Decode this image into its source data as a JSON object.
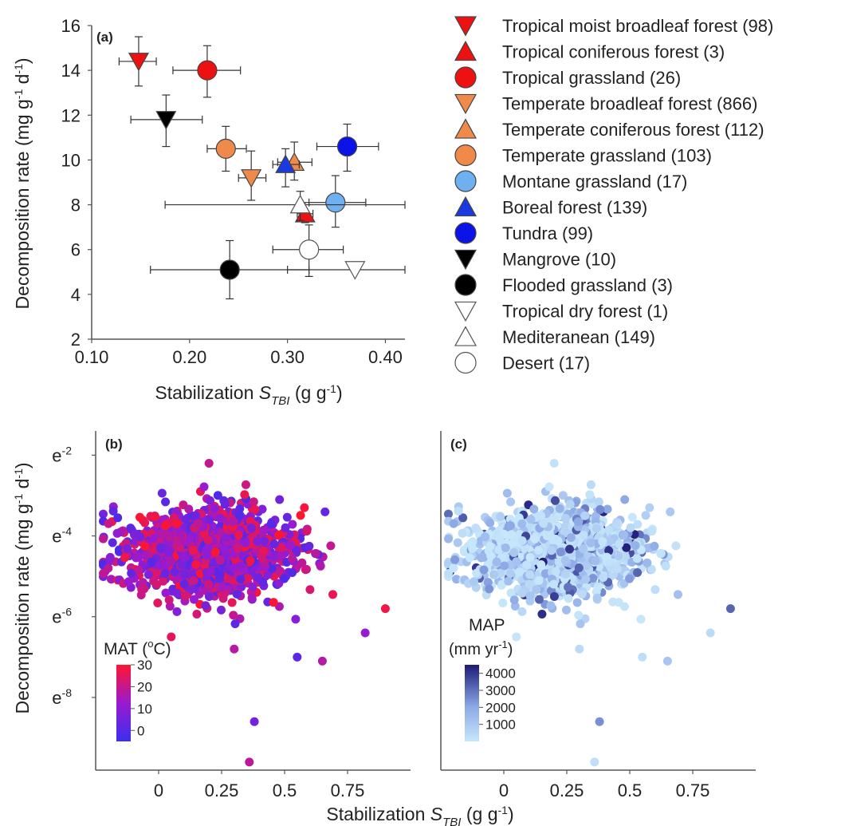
{
  "colors": {
    "tropical_red": "#ee1111",
    "temperate_orange": "#f08a4b",
    "montane_lightblue": "#6fb0f0",
    "boreal_blue": "#1a3adf",
    "tundra_blue": "#0a14e6",
    "black": "#000000",
    "white": "#ffffff"
  },
  "chart_data": [
    {
      "panel": "a",
      "type": "scatter",
      "panel_label": "(a)",
      "xlabel": "Stabilization",
      "xlabel_var": "S",
      "xlabel_sub": "TBI",
      "xlabel_unit": "(g g",
      "xlabel_sup": "-1",
      "xlabel_close": ")",
      "ylabel": "Decomposition rate (mg g",
      "ylabel_sup1": "-1",
      "ylabel_mid": " d",
      "ylabel_sup2": "-1",
      "ylabel_close": ")",
      "xlim": [
        0.1,
        0.42
      ],
      "ylim": [
        2,
        16
      ],
      "xticks": [
        "0.10",
        "0.20",
        "0.30",
        "0.40"
      ],
      "yticks": [
        "2",
        "4",
        "6",
        "8",
        "10",
        "12",
        "14",
        "16"
      ],
      "series": [
        {
          "name": "Tropical moist broadleaf forest (98)",
          "marker": "triangle-down",
          "color": "#ee1111",
          "x": 0.148,
          "y": 14.4,
          "xerr": [
            0.128,
            0.166
          ],
          "yerr": [
            13.3,
            15.5
          ]
        },
        {
          "name": "Tropical coniferous forest (3)",
          "marker": "triangle-up",
          "color": "#ee1111",
          "x": 0.318,
          "y": 7.6,
          "xerr": [
            0.31,
            0.326
          ],
          "yerr": [
            7.2,
            8.1
          ]
        },
        {
          "name": "Tropical grassland (26)",
          "marker": "circle",
          "color": "#ee1111",
          "x": 0.218,
          "y": 14.0,
          "xerr": [
            0.183,
            0.252
          ],
          "yerr": [
            12.8,
            15.1
          ]
        },
        {
          "name": "Temperate broadleaf forest (866)",
          "marker": "triangle-down",
          "color": "#f08a4b",
          "x": 0.263,
          "y": 9.2,
          "xerr": [
            0.25,
            0.278
          ],
          "yerr": [
            8.2,
            10.4
          ]
        },
        {
          "name": "Temperate coniferous forest (112)",
          "marker": "triangle-up",
          "color": "#f08a4b",
          "x": 0.307,
          "y": 9.9,
          "xerr": [
            0.29,
            0.325
          ],
          "yerr": [
            9.1,
            10.8
          ]
        },
        {
          "name": "Temperate grassland (103)",
          "marker": "circle",
          "color": "#f08a4b",
          "x": 0.237,
          "y": 10.5,
          "xerr": [
            0.218,
            0.258
          ],
          "yerr": [
            9.5,
            11.5
          ]
        },
        {
          "name": "Montane grassland (17)",
          "marker": "circle",
          "color": "#6fb0f0",
          "x": 0.349,
          "y": 8.1,
          "xerr": [
            0.322,
            0.38
          ],
          "yerr": [
            7.0,
            9.3
          ]
        },
        {
          "name": "Boreal forest (139)",
          "marker": "triangle-up",
          "color": "#1a3adf",
          "x": 0.298,
          "y": 9.8,
          "xerr": [
            0.285,
            0.312
          ],
          "yerr": [
            8.8,
            10.5
          ]
        },
        {
          "name": "Tundra (99)",
          "marker": "circle",
          "color": "#0a14e6",
          "x": 0.361,
          "y": 10.6,
          "xerr": [
            0.33,
            0.393
          ],
          "yerr": [
            9.5,
            11.6
          ]
        },
        {
          "name": "Mangrove (10)",
          "marker": "triangle-down",
          "color": "#000000",
          "x": 0.176,
          "y": 11.8,
          "xerr": [
            0.14,
            0.213
          ],
          "yerr": [
            10.6,
            12.9
          ]
        },
        {
          "name": "Flooded grassland (3)",
          "marker": "circle",
          "color": "#000000",
          "x": 0.241,
          "y": 5.1,
          "xerr": [
            0.16,
            0.322
          ],
          "yerr": [
            3.8,
            6.4
          ]
        },
        {
          "name": "Tropical dry forest (1)",
          "marker": "triangle-down",
          "color": "#ffffff",
          "x": 0.369,
          "y": 5.1,
          "xerr": [
            0.3,
            0.42
          ],
          "yerr": [
            5.1,
            5.1
          ]
        },
        {
          "name": "Mediteranean (149)",
          "marker": "triangle-up",
          "color": "#ffffff",
          "x": 0.313,
          "y": 8.0,
          "xerr": [
            0.175,
            0.42
          ],
          "yerr": [
            7.3,
            8.6
          ]
        },
        {
          "name": "Desert (17)",
          "marker": "circle",
          "color": "#ffffff",
          "x": 0.322,
          "y": 6.0,
          "xerr": [
            0.285,
            0.357
          ],
          "yerr": [
            4.8,
            7.1
          ]
        }
      ]
    },
    {
      "panel": "b",
      "type": "scatter",
      "panel_label": "(b)",
      "ylabel": "Decomposition rate (mg g",
      "ylabel_sup1": "-1",
      "ylabel_mid": " d",
      "ylabel_sup2": "-1",
      "ylabel_close": ")",
      "xlim": [
        -0.25,
        1.0
      ],
      "ylim": [
        -9.8,
        -1.4
      ],
      "log_scale_y": "natural log (e^)",
      "xticks": [
        "0",
        "0.25",
        "0.5",
        "0.75"
      ],
      "yticks": [
        "e",
        "e",
        "e",
        "e"
      ],
      "ytick_exps": [
        "-2",
        "-4",
        "-6",
        "-8"
      ],
      "colorbar": {
        "title": "MAT (",
        "title_sup": "o",
        "title_close": "C)",
        "ticks": [
          "30",
          "20",
          "10",
          "0"
        ],
        "range": [
          -5,
          30
        ],
        "low_color": "#3a2ff0",
        "mid_color": "#9a1ad0",
        "high_color": "#ff1530"
      },
      "cloud": {
        "x_center": 0.2,
        "x_sd": 0.17,
        "y_center": -4.4,
        "y_sd": 0.55,
        "n": 1300
      },
      "outliers": [
        {
          "x": 0.2,
          "y": -2.2
        },
        {
          "x": 0.48,
          "y": -3.1
        },
        {
          "x": 0.9,
          "y": -5.8
        },
        {
          "x": 0.82,
          "y": -6.4
        },
        {
          "x": 0.05,
          "y": -6.5
        },
        {
          "x": 0.3,
          "y": -6.8
        },
        {
          "x": 0.38,
          "y": -8.6
        },
        {
          "x": 0.36,
          "y": -9.6
        },
        {
          "x": 0.55,
          "y": -7.0
        },
        {
          "x": 0.65,
          "y": -7.1
        },
        {
          "x": -0.2,
          "y": -4.8
        }
      ]
    },
    {
      "panel": "c",
      "type": "scatter",
      "panel_label": "(c)",
      "xlabel": "Stabilization",
      "xlabel_var": "S",
      "xlabel_sub": "TBI",
      "xlabel_unit": "(g g",
      "xlabel_sup": "-1",
      "xlabel_close": ")",
      "xlim": [
        -0.25,
        1.0
      ],
      "ylim": [
        -9.8,
        -1.4
      ],
      "xticks": [
        "0",
        "0.25",
        "0.5",
        "0.75"
      ],
      "colorbar": {
        "title": "MAP",
        "unit": "(mm yr",
        "unit_sup": "-1",
        "unit_close": ")",
        "ticks": [
          "4000",
          "3000",
          "2000",
          "1000"
        ],
        "range": [
          0,
          4500
        ],
        "low_color": "#c6e6fb",
        "high_color": "#1c1a78"
      },
      "cloud": {
        "x_center": 0.2,
        "x_sd": 0.17,
        "y_center": -4.4,
        "y_sd": 0.55,
        "n": 1300
      },
      "outliers": [
        {
          "x": 0.2,
          "y": -2.2
        },
        {
          "x": 0.48,
          "y": -3.1
        },
        {
          "x": 0.9,
          "y": -5.8
        },
        {
          "x": 0.82,
          "y": -6.4
        },
        {
          "x": 0.05,
          "y": -6.5
        },
        {
          "x": 0.3,
          "y": -6.8
        },
        {
          "x": 0.38,
          "y": -8.6
        },
        {
          "x": 0.36,
          "y": -9.6
        },
        {
          "x": 0.55,
          "y": -7.0
        },
        {
          "x": 0.65,
          "y": -7.1
        },
        {
          "x": -0.2,
          "y": -4.8
        }
      ]
    }
  ]
}
